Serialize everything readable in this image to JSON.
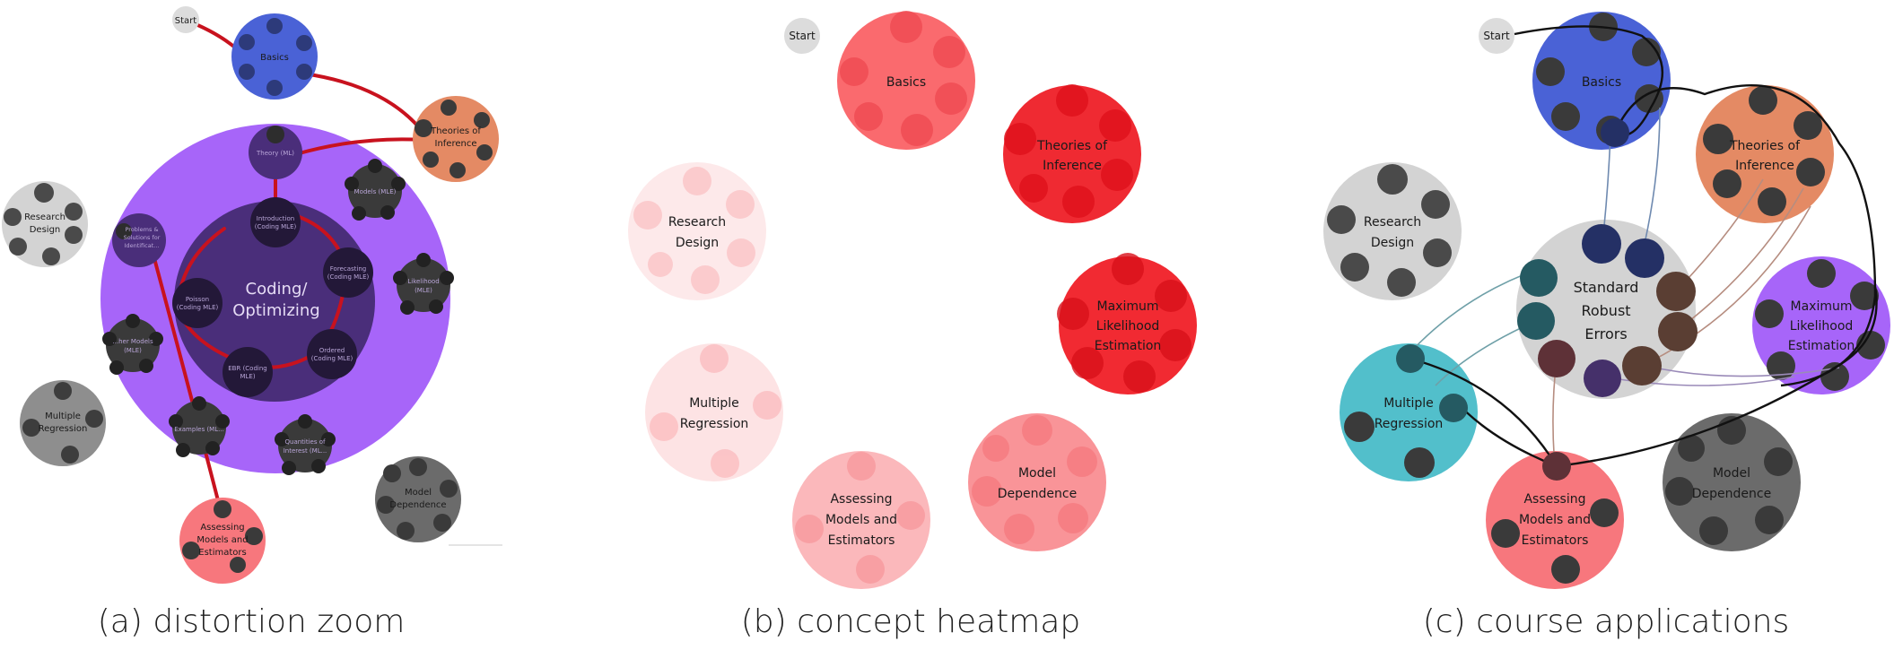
{
  "panel_a": {
    "caption": "(a) distortion zoom",
    "start": "Start",
    "basics": "Basics",
    "theories": [
      "Theories of",
      "Inference"
    ],
    "research": [
      "Research",
      "Design"
    ],
    "multiple": [
      "Multiple",
      "Regression"
    ],
    "model_dep": [
      "Model",
      "Dependence"
    ],
    "assessing": [
      "Assessing",
      "Models and",
      "Estimators"
    ],
    "coding": [
      "Coding/",
      "Optimizing"
    ],
    "inner": {
      "theory": "Theory (ML)",
      "models": "Models (MLE)",
      "likelihood": [
        "Likelihood",
        "(MLE)"
      ],
      "problems": [
        "Problems &",
        "Solutions for",
        "Identificat..."
      ],
      "other_models": [
        "...her Models",
        "(MLE)"
      ],
      "examples": "Examples (ML...",
      "quantities": [
        "Quantities of",
        "Interest (ML..."
      ],
      "introduction": [
        "Introduction",
        "(Coding MLE)"
      ],
      "forecasting": [
        "Forecasting",
        "(Coding MLE)"
      ],
      "poisson": [
        "Poisson",
        "(Coding MLE)"
      ],
      "ordered": [
        "Ordered",
        "(Coding MLE)"
      ],
      "ebr": [
        "EBR (Coding",
        "MLE)"
      ]
    }
  },
  "panel_b": {
    "caption": "(b) concept heatmap",
    "start": "Start",
    "basics": "Basics",
    "theories": [
      "Theories of",
      "Inference"
    ],
    "research": [
      "Research",
      "Design"
    ],
    "multiple": [
      "Multiple",
      "Regression"
    ],
    "mle": [
      "Maximum",
      "Likelihood",
      "Estimation"
    ],
    "model_dep": [
      "Model",
      "Dependence"
    ],
    "assessing": [
      "Assessing",
      "Models and",
      "Estimators"
    ]
  },
  "panel_c": {
    "caption": "(c) course applications",
    "start": "Start",
    "basics": "Basics",
    "theories": [
      "Theories of",
      "Inference"
    ],
    "research": [
      "Research",
      "Design"
    ],
    "multiple": [
      "Multiple",
      "Regression"
    ],
    "mle": [
      "Maximum",
      "Likelihood",
      "Estimation"
    ],
    "model_dep": [
      "Model",
      "Dependence"
    ],
    "assessing": [
      "Assessing",
      "Models and",
      "Estimators"
    ],
    "sre": [
      "Standard",
      "Robust",
      "Errors"
    ]
  },
  "colors": {
    "basics_blue": "#4a62d6",
    "theories_orange": "#e48a64",
    "gray_light": "#d3d3d3",
    "gray_mid": "#8e8e8e",
    "gray_dark": "#6b6b6b",
    "purple": "#a765f9",
    "purple_dark": "#4a2e7a",
    "red_pink": "#f7777d",
    "teal": "#52bfcb",
    "path_red": "#c8121e"
  }
}
